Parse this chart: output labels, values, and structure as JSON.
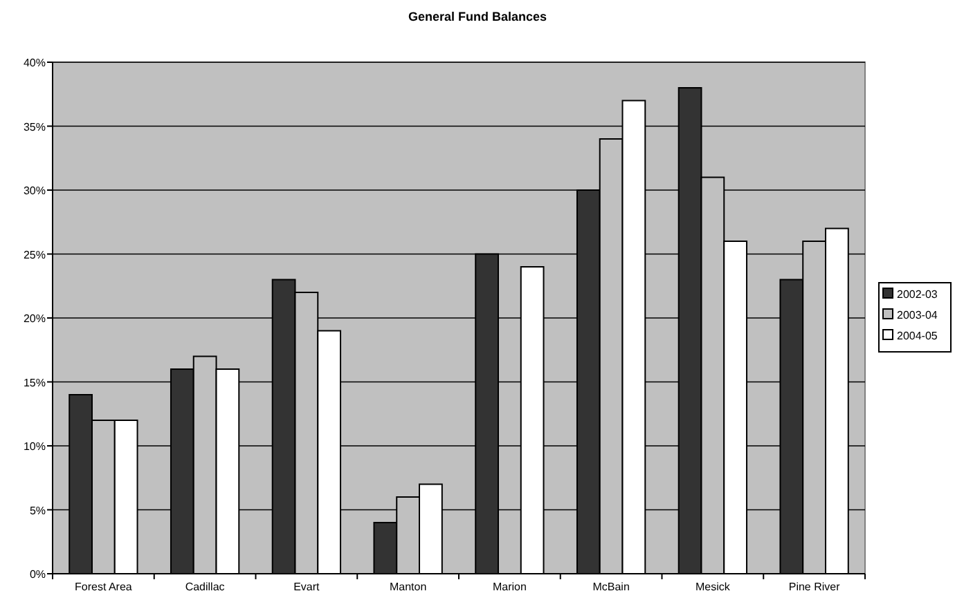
{
  "chart_data": {
    "type": "bar",
    "title": "General Fund Balances",
    "categories": [
      "Forest Area",
      "Cadillac",
      "Evart",
      "Manton",
      "Marion",
      "McBain",
      "Mesick",
      "Pine River"
    ],
    "series": [
      {
        "name": "2002-03",
        "color": "#333333",
        "values": [
          14,
          16,
          23,
          4,
          25,
          30,
          38,
          23
        ]
      },
      {
        "name": "2003-04",
        "color": "#c0c0c0",
        "values": [
          12,
          17,
          22,
          6,
          null,
          34,
          31,
          26
        ]
      },
      {
        "name": "2004-05",
        "color": "#ffffff",
        "values": [
          12,
          16,
          19,
          7,
          24,
          37,
          26,
          27
        ]
      }
    ],
    "ylim": [
      0,
      40
    ],
    "yticks": [
      {
        "value": 0,
        "label": "0%"
      },
      {
        "value": 5,
        "label": "5%"
      },
      {
        "value": 10,
        "label": "10%"
      },
      {
        "value": 15,
        "label": "15%"
      },
      {
        "value": 20,
        "label": "20%"
      },
      {
        "value": 25,
        "label": "25%"
      },
      {
        "value": 30,
        "label": "30%"
      },
      {
        "value": 35,
        "label": "35%"
      },
      {
        "value": 40,
        "label": "40%"
      }
    ],
    "grid": "y",
    "legend": "right"
  }
}
